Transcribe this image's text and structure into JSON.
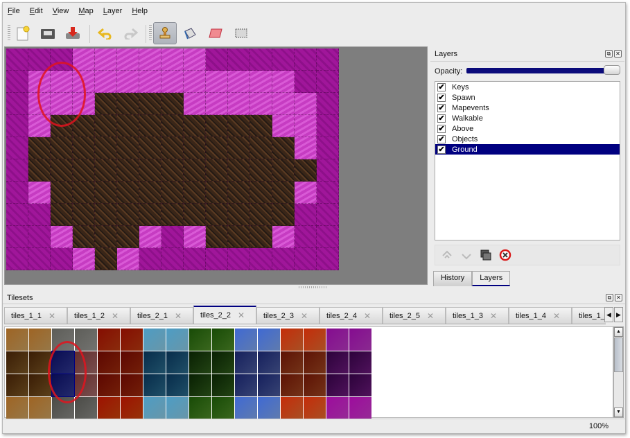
{
  "menubar": {
    "items": [
      "File",
      "Edit",
      "View",
      "Map",
      "Layer",
      "Help"
    ]
  },
  "toolbar": {
    "buttons": [
      {
        "name": "new-map",
        "icon": "new-document-icon"
      },
      {
        "name": "open",
        "icon": "open-folder-icon"
      },
      {
        "name": "save",
        "icon": "save-icon"
      },
      {
        "name": "undo",
        "icon": "undo-icon"
      },
      {
        "name": "redo",
        "icon": "redo-icon"
      },
      {
        "name": "stamp-brush",
        "icon": "stamp-icon",
        "active": true
      },
      {
        "name": "bucket-fill",
        "icon": "bucket-icon"
      },
      {
        "name": "eraser",
        "icon": "eraser-icon"
      },
      {
        "name": "rect-select",
        "icon": "selection-icon"
      }
    ]
  },
  "layers_panel": {
    "title": "Layers",
    "opacity_label": "Opacity:",
    "opacity": 1.0,
    "layers": [
      {
        "name": "Keys",
        "visible": true
      },
      {
        "name": "Spawn",
        "visible": true
      },
      {
        "name": "Mapevents",
        "visible": true
      },
      {
        "name": "Walkable",
        "visible": true
      },
      {
        "name": "Above",
        "visible": true
      },
      {
        "name": "Objects",
        "visible": true
      },
      {
        "name": "Ground",
        "visible": true,
        "selected": true
      }
    ],
    "tabs": [
      "History",
      "Layers"
    ],
    "active_tab": "Layers"
  },
  "tilesets_panel": {
    "title": "Tilesets",
    "tabs": [
      "tiles_1_1",
      "tiles_1_2",
      "tiles_2_1",
      "tiles_2_2",
      "tiles_2_3",
      "tiles_2_4",
      "tiles_2_5",
      "tiles_1_3",
      "tiles_1_4",
      "tiles_1_"
    ],
    "active_tab": "tiles_2_2"
  },
  "status": {
    "zoom": "100%"
  },
  "colors": {
    "selection": "#000080",
    "annotation": "#e0141e"
  }
}
